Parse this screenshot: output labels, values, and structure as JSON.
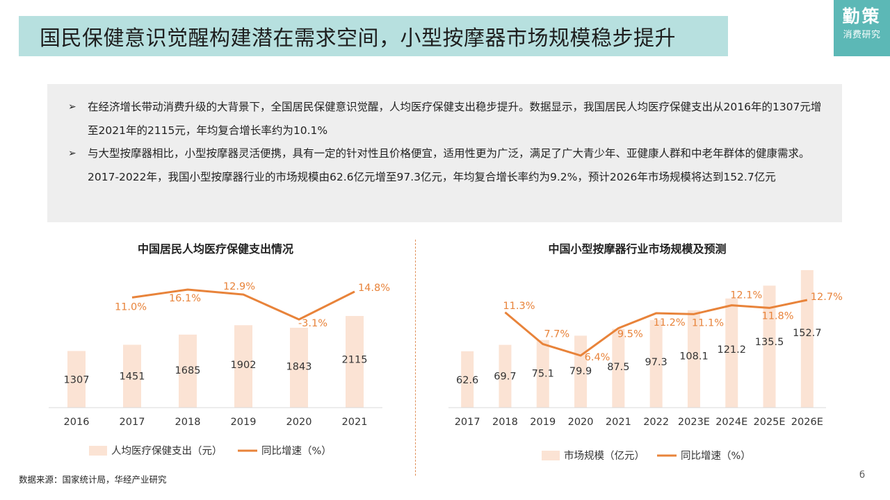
{
  "header": {
    "title": "国民保健意识觉醒构建潜在需求空间，小型按摩器市场规模稳步提升"
  },
  "logo": {
    "main": "勤策",
    "sub": "消费研究"
  },
  "summary": {
    "bullet_glyph": "➢",
    "bullets": [
      "在经济增长带动消费升级的大背景下，全国居民保健意识觉醒，人均医疗保健支出稳步提升。数据显示，我国居民人均医疗保健支出从2016年的1307元增至2021年的2115元，年均复合增长率约为10.1%",
      "与大型按摩器相比，小型按摩器灵活便携，具有一定的针对性且价格便宜，适用性更为广泛，满足了广大青少年、亚健康人群和中老年群体的健康需求。2017-2022年，我国小型按摩器行业的市场规模由62.6亿元增至97.3亿元，年均复合增长率约为9.2%，预计2026年市场规模将达到152.7亿元"
    ]
  },
  "colors": {
    "bar": "#fbe3d4",
    "line": "#e8833a",
    "accent": "#5cb8b6",
    "banner": "#b7e0df"
  },
  "chart_data": [
    {
      "type": "bar",
      "title": "中国居民人均医疗保健支出情况",
      "categories": [
        "2016",
        "2017",
        "2018",
        "2019",
        "2020",
        "2021"
      ],
      "series": [
        {
          "name": "人均医疗保健支出（元）",
          "kind": "bar",
          "values": [
            1307,
            1451,
            1685,
            1902,
            1843,
            2115
          ]
        },
        {
          "name": "同比增速（%）",
          "kind": "line",
          "values": [
            null,
            11.0,
            16.1,
            12.9,
            -3.1,
            14.8
          ],
          "labels": [
            "",
            "11.0%",
            "16.1%",
            "12.9%",
            "-3.1%",
            "14.8%"
          ]
        }
      ],
      "legend": "bottom"
    },
    {
      "type": "bar",
      "title": "中国小型按摩器行业市场规模及预测",
      "categories": [
        "2017",
        "2018",
        "2019",
        "2020",
        "2021",
        "2022",
        "2023E",
        "2024E",
        "2025E",
        "2026E"
      ],
      "series": [
        {
          "name": "市场规模（亿元）",
          "kind": "bar",
          "values": [
            62.6,
            69.7,
            75.1,
            79.9,
            87.5,
            97.3,
            108.1,
            121.2,
            135.5,
            152.7
          ]
        },
        {
          "name": "同比增速（%）",
          "kind": "line",
          "values": [
            null,
            11.3,
            7.7,
            6.4,
            9.5,
            11.2,
            11.1,
            12.1,
            11.8,
            12.7
          ],
          "labels": [
            "",
            "11.3%",
            "7.7%",
            "6.4%",
            "9.5%",
            "11.2%",
            "11.1%",
            "12.1%",
            "11.8%",
            "12.7%"
          ]
        }
      ],
      "legend": "bottom"
    }
  ],
  "footer": {
    "source": "数据来源：国家统计局，华经产业研究"
  },
  "page": {
    "icon": "page-marker-icon"
  }
}
